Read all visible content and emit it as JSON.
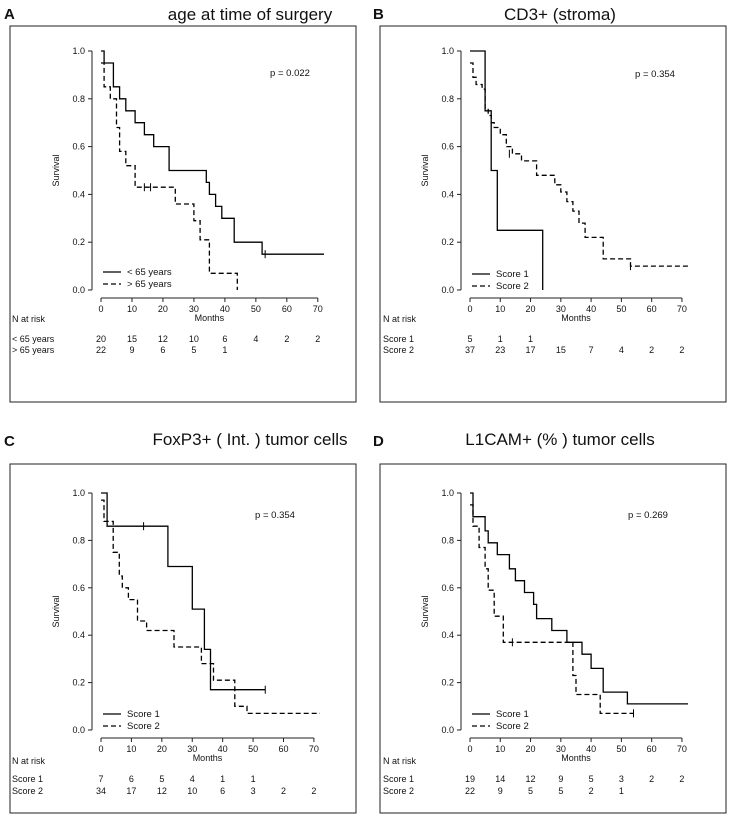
{
  "chart_data": [
    {
      "type": "line",
      "subtype": "kaplan-meier",
      "panel_label": "A",
      "title": "age at time of surgery",
      "xlabel": "Months",
      "ylabel": "Survival",
      "xlim": [
        0,
        72
      ],
      "ylim": [
        0,
        1.0
      ],
      "xticks": [
        "0",
        "10",
        "20",
        "30",
        "40",
        "50",
        "60",
        "70"
      ],
      "yticks": [
        "0.0",
        "0.2",
        "0.4",
        "0.6",
        "0.8",
        "1.0"
      ],
      "pvalue": "p = 0.022",
      "legend_position": "bottom-left",
      "risk_header": "N at risk",
      "series": [
        {
          "name": "< 65 years",
          "style": "solid",
          "x": [
            0,
            1,
            4,
            6,
            8,
            11,
            14,
            17,
            22,
            34,
            35,
            37,
            39,
            43,
            52,
            72
          ],
          "y": [
            1.0,
            0.95,
            0.85,
            0.8,
            0.75,
            0.7,
            0.65,
            0.6,
            0.5,
            0.45,
            0.4,
            0.35,
            0.3,
            0.2,
            0.15,
            0.15
          ],
          "censored": [
            [
              53,
              0.15
            ]
          ],
          "at_risk": [
            "20",
            "15",
            "12",
            "10",
            "6",
            "4",
            "2",
            "2"
          ]
        },
        {
          "name": "> 65 years",
          "style": "dashed",
          "x": [
            0,
            1,
            3,
            5,
            6,
            8,
            11,
            24,
            30,
            32,
            35,
            44
          ],
          "y": [
            0.95,
            0.85,
            0.8,
            0.68,
            0.58,
            0.52,
            0.43,
            0.36,
            0.29,
            0.21,
            0.07,
            0.0
          ],
          "censored": [
            [
              14,
              0.43
            ],
            [
              16,
              0.43
            ]
          ],
          "at_risk": [
            "22",
            "9",
            "6",
            "5",
            "1",
            "",
            "",
            ""
          ]
        }
      ]
    },
    {
      "type": "line",
      "subtype": "kaplan-meier",
      "panel_label": "B",
      "title": "CD3+ (stroma)",
      "xlabel": "Months",
      "ylabel": "Survival",
      "xlim": [
        0,
        72
      ],
      "ylim": [
        0,
        1.0
      ],
      "xticks": [
        "0",
        "10",
        "20",
        "30",
        "40",
        "50",
        "60",
        "70"
      ],
      "yticks": [
        "0.0",
        "0.2",
        "0.4",
        "0.6",
        "0.8",
        "1.0"
      ],
      "pvalue": "p = 0.354",
      "legend_position": "bottom-left",
      "risk_header": "N at risk",
      "series": [
        {
          "name": "Score 1",
          "style": "solid",
          "x": [
            0,
            5,
            7,
            9,
            24,
            24
          ],
          "y": [
            1.0,
            0.75,
            0.5,
            0.25,
            0.25,
            0.0
          ],
          "censored": [],
          "at_risk": [
            "5",
            "1",
            "1",
            "",
            "",
            "",
            "",
            ""
          ]
        },
        {
          "name": "Score 2",
          "style": "dashed",
          "x": [
            0,
            1,
            2,
            4,
            5,
            6,
            7,
            8,
            10,
            12,
            14,
            17,
            22,
            28,
            30,
            32,
            34,
            36,
            38,
            44,
            53,
            72
          ],
          "y": [
            0.95,
            0.89,
            0.86,
            0.84,
            0.76,
            0.73,
            0.7,
            0.68,
            0.65,
            0.6,
            0.57,
            0.54,
            0.48,
            0.44,
            0.41,
            0.37,
            0.33,
            0.28,
            0.22,
            0.13,
            0.1,
            0.1
          ],
          "censored": [
            [
              13,
              0.57
            ],
            [
              53,
              0.1
            ]
          ],
          "at_risk": [
            "37",
            "23",
            "17",
            "15",
            "7",
            "4",
            "2",
            "2"
          ]
        }
      ]
    },
    {
      "type": "line",
      "subtype": "kaplan-meier",
      "panel_label": "C",
      "title": "FoxP3+ ( Int. ) tumor cells",
      "xlabel": "Months",
      "ylabel": "Survival",
      "xlim": [
        0,
        72
      ],
      "ylim": [
        0,
        1.0
      ],
      "xticks": [
        "0",
        "10",
        "20",
        "30",
        "40",
        "50",
        "60",
        "70"
      ],
      "yticks": [
        "0.0",
        "0.2",
        "0.4",
        "0.6",
        "0.8",
        "1.0"
      ],
      "pvalue": "p = 0.354",
      "legend_position": "bottom-left",
      "risk_header": "N at risk",
      "series": [
        {
          "name": "Score 1",
          "style": "solid",
          "x": [
            0,
            2,
            22,
            30,
            34,
            36,
            54
          ],
          "y": [
            1.0,
            0.86,
            0.69,
            0.51,
            0.34,
            0.17,
            0.17
          ],
          "censored": [
            [
              14,
              0.86
            ],
            [
              54,
              0.17
            ]
          ],
          "at_risk": [
            "7",
            "6",
            "5",
            "4",
            "1",
            "1",
            "",
            ""
          ]
        },
        {
          "name": "Score 2",
          "style": "dashed",
          "x": [
            0,
            1,
            4,
            6,
            7,
            9,
            12,
            15,
            24,
            33,
            37,
            44,
            48,
            72
          ],
          "y": [
            0.97,
            0.88,
            0.75,
            0.65,
            0.6,
            0.55,
            0.46,
            0.42,
            0.35,
            0.28,
            0.21,
            0.1,
            0.07,
            0.07
          ],
          "censored": [],
          "at_risk": [
            "34",
            "17",
            "12",
            "10",
            "6",
            "3",
            "2",
            "2"
          ]
        }
      ]
    },
    {
      "type": "line",
      "subtype": "kaplan-meier",
      "panel_label": "D",
      "title": "L1CAM+ (% ) tumor cells",
      "xlabel": "Months",
      "ylabel": "Survival",
      "xlim": [
        0,
        72
      ],
      "ylim": [
        0,
        1.0
      ],
      "xticks": [
        "0",
        "10",
        "20",
        "30",
        "40",
        "50",
        "60",
        "70"
      ],
      "yticks": [
        "0.0",
        "0.2",
        "0.4",
        "0.6",
        "0.8",
        "1.0"
      ],
      "pvalue": "p = 0.269",
      "legend_position": "bottom-left",
      "risk_header": "N at risk",
      "series": [
        {
          "name": "Score 1",
          "style": "solid",
          "x": [
            0,
            1,
            5,
            6,
            9,
            13,
            15,
            18,
            21,
            22,
            23,
            24,
            27,
            32,
            34,
            37,
            40,
            44,
            52,
            72
          ],
          "y": [
            1.0,
            0.9,
            0.84,
            0.79,
            0.74,
            0.68,
            0.63,
            0.58,
            0.53,
            0.47,
            0.47,
            0.47,
            0.42,
            0.37,
            0.37,
            0.32,
            0.26,
            0.16,
            0.11,
            0.11
          ],
          "censored": [],
          "at_risk": [
            "19",
            "14",
            "12",
            "9",
            "5",
            "3",
            "2",
            "2"
          ]
        },
        {
          "name": "Score 2",
          "style": "dashed",
          "x": [
            0,
            1,
            3,
            5,
            6,
            8,
            11,
            34,
            35,
            37,
            43,
            54
          ],
          "y": [
            0.95,
            0.86,
            0.77,
            0.68,
            0.59,
            0.48,
            0.37,
            0.23,
            0.15,
            0.15,
            0.07,
            0.07
          ],
          "censored": [
            [
              14,
              0.37
            ],
            [
              54,
              0.07
            ]
          ],
          "at_risk": [
            "22",
            "9",
            "5",
            "5",
            "2",
            "1",
            "",
            ""
          ]
        }
      ]
    }
  ]
}
